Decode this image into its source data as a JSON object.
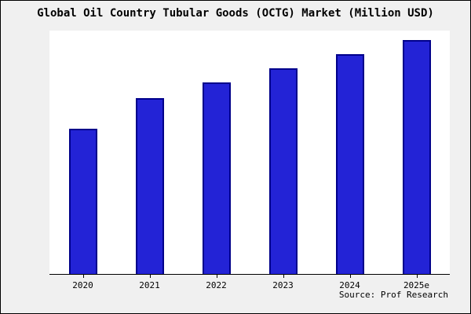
{
  "page": {
    "background": "#f0f0f0",
    "source_text": "Source: Prof Research"
  },
  "chart_data": {
    "type": "bar",
    "title": "Global Oil Country Tubular Goods (OCTG) Market (Million USD)",
    "categories": [
      "2020",
      "2021",
      "2022",
      "2023",
      "2024",
      "2025e"
    ],
    "values": [
      62,
      75,
      82,
      88,
      94,
      100
    ],
    "value_scale": "relative; y-axis unlabeled, 100 = tallest bar (2025e)",
    "xlabel": "",
    "ylabel": "",
    "ylim": [
      0,
      104
    ],
    "grid": false,
    "legend": false,
    "bar_fill": "#2323d6",
    "bar_border": "#00008b",
    "plot_background": "#ffffff",
    "axis_color": "#000000"
  }
}
